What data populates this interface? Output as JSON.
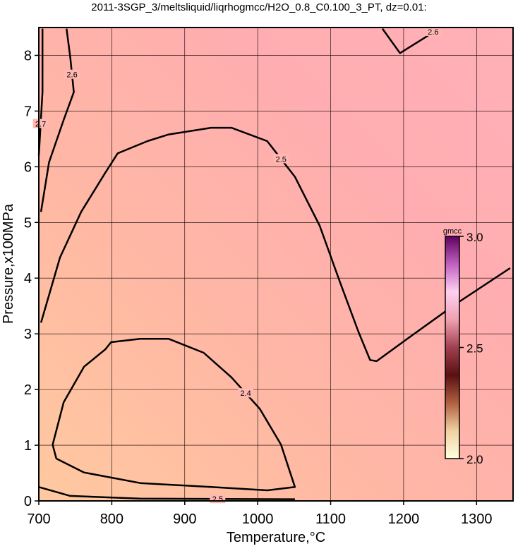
{
  "chart_data": {
    "type": "contour",
    "title": "2011-3SGP_3/meltsliquid/liqrhogmcc/H2O_0.8_C0.100_3_PT, dz=0.01:",
    "x_label": "Temperature,°C",
    "y_label": "Pressure,x100MPa",
    "xlim": [
      700,
      1350
    ],
    "ylim": [
      0,
      8.5
    ],
    "xticks": [
      700,
      800,
      900,
      1000,
      1100,
      1200,
      1300
    ],
    "yticks": [
      0,
      1,
      2,
      3,
      4,
      5,
      6,
      7,
      8
    ],
    "grid": true,
    "contours": [
      {
        "level": 2.5,
        "x": [
          703,
          729,
          758,
          791,
          808,
          849,
          878,
          936,
          964,
          1013,
          1051,
          1085,
          1113,
          1138,
          1154,
          1163,
          1205,
          1272,
          1346
        ],
        "y": [
          3.2,
          4.37,
          5.19,
          5.89,
          6.24,
          6.46,
          6.58,
          6.7,
          6.7,
          6.46,
          5.82,
          4.94,
          3.92,
          3.04,
          2.53,
          2.51,
          2.91,
          3.54,
          4.18
        ]
      },
      {
        "level": 2.4,
        "x": [
          724,
          719,
          734,
          762,
          791,
          799,
          839,
          878,
          926,
          964,
          1003,
          1032,
          1051,
          1013,
          936,
          839,
          762,
          724
        ],
        "y": [
          0.76,
          1.01,
          1.77,
          2.41,
          2.72,
          2.85,
          2.91,
          2.91,
          2.66,
          2.22,
          1.65,
          1.01,
          0.25,
          0.19,
          0.25,
          0.32,
          0.51,
          0.76
        ]
      },
      {
        "level": 2.6,
        "x": [
          703,
          714,
          734,
          748,
          743,
          738
        ],
        "y": [
          5.19,
          6.08,
          6.84,
          7.34,
          7.97,
          8.48
        ]
      },
      {
        "level": 2.6,
        "x": [
          1171,
          1195,
          1233,
          1248
        ],
        "y": [
          8.48,
          8.04,
          8.35,
          8.5
        ]
      },
      {
        "level": 2.7,
        "x": [
          700,
          705,
          705
        ],
        "y": [
          6.2,
          7.34,
          8.48
        ]
      },
      {
        "level": 2.5,
        "x": [
          700,
          743,
          839,
          1051
        ],
        "y": [
          0.25,
          0.09,
          0.04,
          0.03
        ]
      }
    ],
    "colorbar": {
      "label": "gmcc",
      "lim": [
        2,
        3
      ],
      "ticks": [
        {
          "value": 2,
          "label": "2.0"
        },
        2.5,
        {
          "value": 3,
          "label": "3.0"
        }
      ],
      "colors": [
        "#ffffe0",
        "#f0d0a0",
        "#b06040",
        "#5a1010",
        "#a04050",
        "#f0a0b0",
        "#ffd0f0",
        "#c060c0",
        "#600060"
      ]
    }
  }
}
